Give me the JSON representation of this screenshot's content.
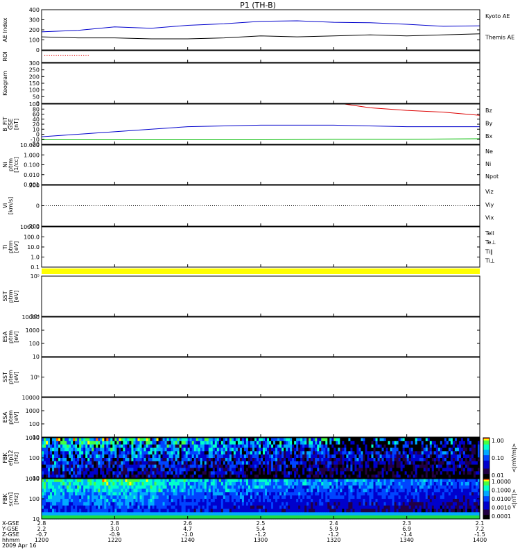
{
  "title": "P1 (TH-B)",
  "colors": {
    "ae_kyoto": "#0000cc",
    "ae_themis": "#000000",
    "bz": "#dd0000",
    "by": "#00bb00",
    "bx": "#0000cc",
    "roi": "#dd0000",
    "bar": "#ffff00"
  },
  "panels": [
    {
      "id": "ae",
      "ylabel": "AE Index",
      "yticks": [
        "0",
        "100",
        "200",
        "300",
        "400"
      ],
      "legend": [
        "Kyoto AE",
        "Themis AE"
      ]
    },
    {
      "id": "roi",
      "ylabel": "ROI",
      "yticks": [],
      "legend": []
    },
    {
      "id": "keo",
      "ylabel": "Keogram",
      "yticks": [
        "0",
        "50",
        "100",
        "150",
        "200",
        "250",
        "300"
      ],
      "legend": []
    },
    {
      "id": "bfit",
      "ylabel": "B_FIT",
      "ylabel2": "GSE",
      "ylabel3": "[nT]",
      "yticks": [
        "-20",
        "-10",
        "0",
        "10",
        "20",
        "40",
        "60",
        "80",
        "100"
      ],
      "legend": [
        "Bz",
        "By",
        "Bx"
      ]
    },
    {
      "id": "ni",
      "ylabel": "Ni",
      "ylabel2": "ptrm",
      "ylabel3": "[1/cc]",
      "yticks": [
        "0.001",
        "0.010",
        "0.100",
        "1.000",
        "10.000"
      ],
      "legend": [
        "Ne",
        "Ni",
        "Npot"
      ]
    },
    {
      "id": "vi",
      "ylabel": "Vi",
      "ylabel2": "",
      "ylabel3": "[km/s]",
      "yticks": [
        "-200",
        "0",
        "200"
      ],
      "legend": [
        "Viz",
        "Viy",
        "Vix"
      ]
    },
    {
      "id": "ti",
      "ylabel": "Ti",
      "ylabel2": "ptrm",
      "ylabel3": "[eV]",
      "yticks": [
        "0.1",
        "1.0",
        "10.0",
        "100.0",
        "1000.0"
      ],
      "legend": [
        "Tell",
        "Te⊥",
        "Ti∥",
        "Ti⊥"
      ]
    },
    {
      "id": "sst1",
      "ylabel": "SST",
      "ylabel2": "ptrm",
      "ylabel3": "[eV]",
      "yticks": [
        "10⁴",
        "10⁵"
      ],
      "legend": []
    },
    {
      "id": "esa1",
      "ylabel": "ESA",
      "ylabel2": "ptrm",
      "ylabel3": "[eV]",
      "yticks": [
        "10",
        "100",
        "1000",
        "10000"
      ],
      "legend": []
    },
    {
      "id": "sst2",
      "ylabel": "SST",
      "ylabel2": "ptem",
      "ylabel3": "[eV]",
      "yticks": [
        "10⁵"
      ],
      "legend": []
    },
    {
      "id": "esa2",
      "ylabel": "ESA",
      "ylabel2": "ptem",
      "ylabel3": "[eV]",
      "yticks": [
        "10",
        "100",
        "1000",
        "10000"
      ],
      "legend": []
    },
    {
      "id": "fbk1",
      "ylabel": "FBK",
      "ylabel2": "efp12",
      "ylabel3": "[Hz]",
      "yticks": [
        "10",
        "100",
        "1000"
      ],
      "legend": []
    },
    {
      "id": "fbk2",
      "ylabel": "FBK",
      "ylabel2": "scm1",
      "ylabel3": "[Hz]",
      "yticks": [
        "10",
        "100",
        "1000"
      ],
      "legend": []
    }
  ],
  "colorbars": [
    {
      "label": "<|mV/m|>",
      "ticks": [
        "0.01",
        "0.10",
        "1.00"
      ]
    },
    {
      "label": "<|nT|>",
      "ticks": [
        "0.0001",
        "0.0010",
        "0.0100",
        "0.1000",
        "1.0000"
      ]
    }
  ],
  "xaxis": {
    "row_labels": [
      "X-GSE",
      "Y-GSE",
      "Z-GSE",
      "hhmm",
      "2009 Apr 16"
    ],
    "ticks": [
      {
        "x": "2.8",
        "y": "2.2",
        "z": "-0.7",
        "time": "1200"
      },
      {
        "x": "2.8",
        "y": "3.0",
        "z": "-0.9",
        "time": "1220"
      },
      {
        "x": "2.6",
        "y": "4.7",
        "z": "-1.0",
        "time": "1240"
      },
      {
        "x": "2.5",
        "y": "5.4",
        "z": "-1.2",
        "time": "1300"
      },
      {
        "x": "2.4",
        "y": "5.9",
        "z": "-1.2",
        "time": "1320"
      },
      {
        "x": "2.3",
        "y": "6.9",
        "z": "-1.4",
        "time": "1340"
      },
      {
        "x": "2.1",
        "y": "7.2",
        "z": "-1.5",
        "time": "1400"
      }
    ]
  },
  "chart_data": {
    "type": "line",
    "x_time_hhmm": [
      "1200",
      "1220",
      "1240",
      "1300",
      "1320",
      "1340",
      "1400"
    ],
    "series": [
      {
        "name": "Kyoto AE",
        "x": [
          "1200",
          "1210",
          "1220",
          "1230",
          "1240",
          "1250",
          "1300",
          "1310",
          "1320",
          "1330",
          "1340",
          "1350",
          "1400"
        ],
        "values": [
          180,
          195,
          230,
          215,
          245,
          260,
          285,
          290,
          275,
          270,
          255,
          235,
          240
        ]
      },
      {
        "name": "Themis AE",
        "x": [
          "1200",
          "1210",
          "1220",
          "1230",
          "1240",
          "1250",
          "1300",
          "1310",
          "1320",
          "1330",
          "1340",
          "1350",
          "1400"
        ],
        "values": [
          130,
          120,
          120,
          110,
          110,
          120,
          140,
          130,
          140,
          150,
          140,
          150,
          160
        ]
      },
      {
        "name": "Bz",
        "x": [
          "1323",
          "1330",
          "1340",
          "1350",
          "1400"
        ],
        "values": [
          100,
          85,
          75,
          68,
          55
        ]
      },
      {
        "name": "Bx",
        "x": [
          "1200",
          "1210",
          "1220",
          "1230",
          "1240",
          "1300",
          "1320",
          "1340",
          "1400"
        ],
        "values": [
          -5,
          0,
          5,
          10,
          15,
          18,
          18,
          15,
          15
        ]
      },
      {
        "name": "By",
        "x": [
          "1200",
          "1220",
          "1240",
          "1300",
          "1320",
          "1340",
          "1400"
        ],
        "values": [
          -11,
          -11,
          -11,
          -11,
          -10,
          -10,
          -9
        ]
      }
    ],
    "panels": [
      "AE Index",
      "ROI",
      "Keogram",
      "B_FIT",
      "Ni",
      "Vi",
      "Ti",
      "SST",
      "ESA",
      "SST",
      "ESA",
      "FBK",
      "FBK"
    ]
  }
}
